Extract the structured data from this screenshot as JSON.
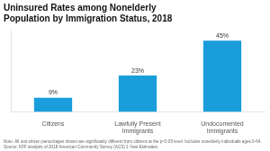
{
  "chart_data": {
    "type": "bar",
    "title": [
      "Uninsured Rates among Nonelderly",
      "Population by Immigration Status, 2018"
    ],
    "categories": [
      "Citizens",
      "Lawfully Present\nImmigrants",
      "Undocumented\nImmigrants"
    ],
    "values": [
      9,
      23,
      45
    ],
    "value_labels": [
      "9%",
      "23%",
      "45%"
    ],
    "data_labels": true,
    "color": "#1a9edb",
    "ylim": [
      0,
      52
    ],
    "grid": false,
    "tick_labels": "x",
    "annotations": [
      "Note: All non-citizen percentages shown are significantly different from citizens at the p<0.05 level. Includes nonelderly individuals ages 0-64.",
      "Source: KFF analysis of 2018 American Community Survey (ACS) 1-Year Estimates."
    ]
  }
}
